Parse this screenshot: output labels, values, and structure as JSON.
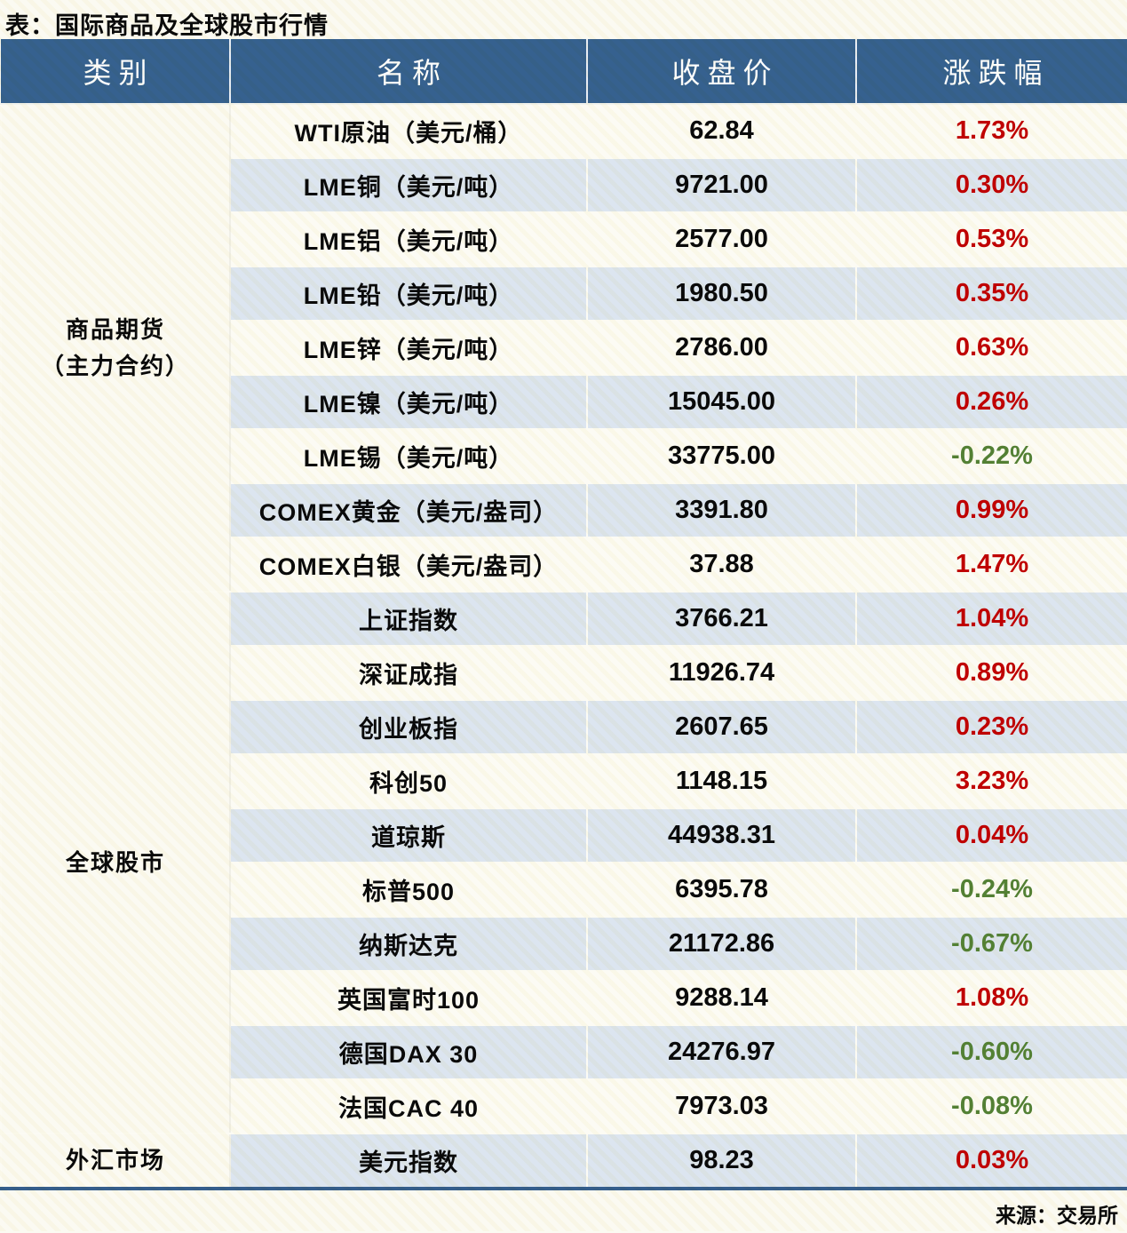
{
  "page_title": "表：国际商品及全球股市行情",
  "source_note": "来源：交易所",
  "colors": {
    "header_bg": "#36618F",
    "row_alt_bg": "#DCE5F0",
    "row_bg": "#FCFBF4",
    "section_divider": "#B7C7DA",
    "table_bottom_border": "#355E8D",
    "up_red": "#C00000",
    "down_green": "#538135"
  },
  "chart_data": {
    "type": "table",
    "title": "表：国际商品及全球股市行情",
    "columns": [
      "类别",
      "名称",
      "收盘价",
      "涨跌幅"
    ],
    "groups": [
      {
        "category": "商品期货（主力合约）",
        "category_lines": [
          "商品期货",
          "（主力合约）"
        ],
        "rows": [
          {
            "name": "WTI原油（美元/桶）",
            "close": "62.84",
            "change": "1.73%",
            "direction": "up"
          },
          {
            "name": "LME铜（美元/吨）",
            "close": "9721.00",
            "change": "0.30%",
            "direction": "up"
          },
          {
            "name": "LME铝（美元/吨）",
            "close": "2577.00",
            "change": "0.53%",
            "direction": "up"
          },
          {
            "name": "LME铅（美元/吨）",
            "close": "1980.50",
            "change": "0.35%",
            "direction": "up"
          },
          {
            "name": "LME锌（美元/吨）",
            "close": "2786.00",
            "change": "0.63%",
            "direction": "up"
          },
          {
            "name": "LME镍（美元/吨）",
            "close": "15045.00",
            "change": "0.26%",
            "direction": "up"
          },
          {
            "name": "LME锡（美元/吨）",
            "close": "33775.00",
            "change": "-0.22%",
            "direction": "down"
          },
          {
            "name": "COMEX黄金（美元/盎司）",
            "close": "3391.80",
            "change": "0.99%",
            "direction": "up"
          },
          {
            "name": "COMEX白银（美元/盎司）",
            "close": "37.88",
            "change": "1.47%",
            "direction": "up"
          }
        ]
      },
      {
        "category": "全球股市",
        "category_lines": [
          "全球股市"
        ],
        "rows": [
          {
            "name": "上证指数",
            "close": "3766.21",
            "change": "1.04%",
            "direction": "up"
          },
          {
            "name": "深证成指",
            "close": "11926.74",
            "change": "0.89%",
            "direction": "up"
          },
          {
            "name": "创业板指",
            "close": "2607.65",
            "change": "0.23%",
            "direction": "up"
          },
          {
            "name": "科创50",
            "close": "1148.15",
            "change": "3.23%",
            "direction": "up"
          },
          {
            "name": "道琼斯",
            "close": "44938.31",
            "change": "0.04%",
            "direction": "up"
          },
          {
            "name": "标普500",
            "close": "6395.78",
            "change": "-0.24%",
            "direction": "down"
          },
          {
            "name": "纳斯达克",
            "close": "21172.86",
            "change": "-0.67%",
            "direction": "down"
          },
          {
            "name": "英国富时100",
            "close": "9288.14",
            "change": "1.08%",
            "direction": "up"
          },
          {
            "name": "德国DAX 30",
            "close": "24276.97",
            "change": "-0.60%",
            "direction": "down"
          },
          {
            "name": "法国CAC 40",
            "close": "7973.03",
            "change": "-0.08%",
            "direction": "down"
          }
        ]
      },
      {
        "category": "外汇市场",
        "category_lines": [
          "外汇市场"
        ],
        "rows": [
          {
            "name": "美元指数",
            "close": "98.23",
            "change": "0.03%",
            "direction": "up"
          }
        ]
      }
    ]
  }
}
